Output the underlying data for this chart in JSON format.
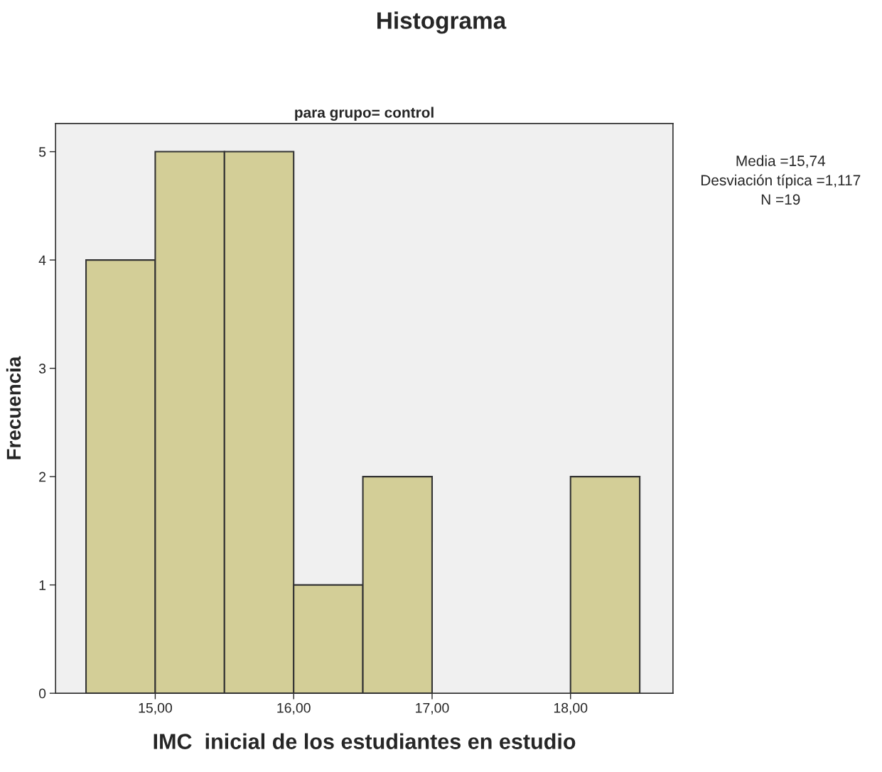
{
  "chart_data": {
    "type": "histogram",
    "title": "Histograma",
    "subtitle": "para grupo= control",
    "xlabel": "IMC  inicial de los estudiantes en estudio",
    "ylabel": "Frecuencia",
    "bins": [
      14.5,
      15,
      15.5,
      16,
      16.5,
      17,
      17.5,
      18,
      18.5
    ],
    "values": [
      4,
      5,
      5,
      1,
      2,
      0,
      0,
      2
    ],
    "color": "#d3ce97",
    "xlim": [
      14.28,
      18.74
    ],
    "ylim": [
      0,
      5.26
    ],
    "xticks": [
      {
        "value": 15,
        "label": "15,00"
      },
      {
        "value": 16,
        "label": "16,00"
      },
      {
        "value": 17,
        "label": "17,00"
      },
      {
        "value": 18,
        "label": "18,00"
      }
    ],
    "yticks": [
      0,
      1,
      2,
      3,
      4,
      5
    ],
    "annotations": [
      "Media =15,74",
      "Desviación típica =1,117",
      "N =19"
    ],
    "grid": false,
    "legend": false
  }
}
